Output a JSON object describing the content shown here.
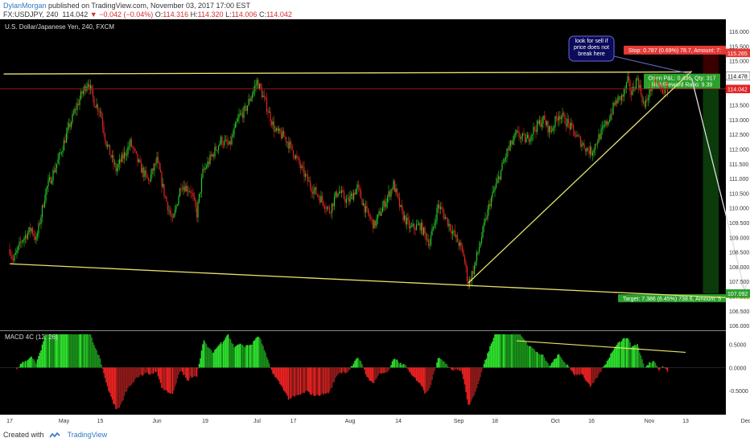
{
  "header": {
    "author": "DylanMorgan",
    "published": "published on TradingView.com, November 03, 2017 17:00 EST",
    "symbol": "FX:USDJPY, 240",
    "last": "114.042",
    "change": "▼ −0.042 (−0.04%)",
    "o_label": "O:",
    "o": "114.316",
    "h_label": "H:",
    "h": "114.320",
    "l_label": "L:",
    "l": "114.006",
    "c_label": "C:",
    "c": "114.042"
  },
  "footer": {
    "created": "Created with",
    "brand": "TradingView"
  },
  "colors": {
    "up": "#27c927",
    "down": "#e02424",
    "trend": "#e8e26a",
    "bg": "#000000",
    "axis_bg": "#ffffff",
    "target": "#2ca02c",
    "stop": "#e53935"
  },
  "chart_data": [
    {
      "type": "candlestick",
      "title": "U.S. Dollar/Japanese Yen, 240, FXCM",
      "ylim": [
        105.95,
        116.3
      ],
      "y_ticks": [
        "116.000",
        "115.500",
        "115.000",
        "114.500",
        "114.000",
        "113.500",
        "113.000",
        "112.500",
        "112.000",
        "111.500",
        "111.000",
        "110.500",
        "110.000",
        "109.500",
        "109.000",
        "108.500",
        "108.000",
        "107.500",
        "107.000",
        "106.500",
        "106.000"
      ],
      "x_tick_labels": [
        "17",
        "May",
        "15",
        "Jun",
        "19",
        "Jul",
        "17",
        "Aug",
        "14",
        "Sep",
        "18",
        "Oct",
        "16",
        "Nov",
        "13",
        "Dec"
      ],
      "x_tick_index": [
        0,
        45,
        75,
        122,
        162,
        205,
        235,
        282,
        322,
        372,
        402,
        452,
        482,
        530,
        560,
        610
      ],
      "total_bars": 640,
      "price_path": [
        [
          0,
          108.6
        ],
        [
          3,
          108.2
        ],
        [
          10,
          108.9
        ],
        [
          18,
          109.3
        ],
        [
          22,
          108.9
        ],
        [
          30,
          110.6
        ],
        [
          40,
          111.6
        ],
        [
          48,
          112.6
        ],
        [
          55,
          113.4
        ],
        [
          60,
          113.9
        ],
        [
          65,
          114.3
        ],
        [
          70,
          113.6
        ],
        [
          75,
          113.3
        ],
        [
          80,
          112.2
        ],
        [
          88,
          111.3
        ],
        [
          95,
          111.8
        ],
        [
          100,
          112.2
        ],
        [
          108,
          111.4
        ],
        [
          115,
          110.9
        ],
        [
          122,
          111.6
        ],
        [
          128,
          110.5
        ],
        [
          135,
          109.5
        ],
        [
          142,
          110.8
        ],
        [
          150,
          110.6
        ],
        [
          155,
          109.8
        ],
        [
          160,
          111.2
        ],
        [
          168,
          111.8
        ],
        [
          175,
          112.3
        ],
        [
          182,
          112.1
        ],
        [
          190,
          113.1
        ],
        [
          195,
          113.3
        ],
        [
          200,
          113.8
        ],
        [
          205,
          114.3
        ],
        [
          208,
          114.0
        ],
        [
          215,
          113.2
        ],
        [
          220,
          112.6
        ],
        [
          228,
          112.4
        ],
        [
          235,
          111.9
        ],
        [
          242,
          111.3
        ],
        [
          250,
          110.7
        ],
        [
          258,
          110.3
        ],
        [
          265,
          109.9
        ],
        [
          272,
          110.6
        ],
        [
          280,
          110.2
        ],
        [
          288,
          110.7
        ],
        [
          295,
          109.9
        ],
        [
          302,
          109.4
        ],
        [
          310,
          110.1
        ],
        [
          318,
          110.8
        ],
        [
          325,
          109.8
        ],
        [
          332,
          109.3
        ],
        [
          340,
          109.4
        ],
        [
          348,
          108.8
        ],
        [
          355,
          110.1
        ],
        [
          362,
          109.6
        ],
        [
          368,
          109.1
        ],
        [
          372,
          108.8
        ],
        [
          376,
          108.4
        ],
        [
          380,
          107.4
        ],
        [
          385,
          108.0
        ],
        [
          392,
          109.2
        ],
        [
          398,
          110.2
        ],
        [
          405,
          111.0
        ],
        [
          412,
          111.9
        ],
        [
          420,
          112.5
        ],
        [
          428,
          112.3
        ],
        [
          435,
          112.7
        ],
        [
          442,
          113.0
        ],
        [
          448,
          112.6
        ],
        [
          455,
          113.2
        ],
        [
          462,
          112.9
        ],
        [
          470,
          112.4
        ],
        [
          478,
          112.0
        ],
        [
          482,
          111.9
        ],
        [
          488,
          112.4
        ],
        [
          495,
          112.9
        ],
        [
          502,
          113.6
        ],
        [
          508,
          113.8
        ],
        [
          512,
          114.3
        ],
        [
          515,
          113.9
        ],
        [
          520,
          114.4
        ],
        [
          526,
          113.4
        ],
        [
          530,
          114.0
        ],
        [
          535,
          114.3
        ],
        [
          540,
          114.0
        ],
        [
          545,
          114.04
        ]
      ],
      "lines": [
        {
          "name": "upper-resistance",
          "from": [
            -5,
            114.55
          ],
          "to": [
            565,
            114.62
          ]
        },
        {
          "name": "rising-support",
          "from": [
            380,
            107.45
          ],
          "to": [
            565,
            114.65
          ]
        },
        {
          "name": "lower-channel",
          "from": [
            0,
            108.1
          ],
          "to": [
            620,
            106.9
          ]
        },
        {
          "name": "projection-arrow",
          "from": [
            565,
            114.4
          ],
          "to": [
            609,
            107.2
          ]
        }
      ],
      "price_line": 114.042,
      "position": {
        "entry": 114.478,
        "stop": 115.265,
        "target": 107.092,
        "start_bar": 565,
        "end_bar": 630
      },
      "labels": {
        "note": "look for sell if price does not break here",
        "pnl_line1": "Open P&L: 0.436, Qty: 317",
        "pnl_line2": "Risk/Reward Ratio: 9.39",
        "stop": "Stop: 0.787 (0.69%) 78.7, Amount: 7:",
        "target": "Target: 7.386 (6.45%) 738.6, Amount: 5",
        "tag_stop": "115.265",
        "tag_entry": "114.478",
        "tag_last": "114.042",
        "tag_target": "107.092"
      }
    },
    {
      "type": "histogram",
      "title": "MACD 4C (12, 26)",
      "ylim": [
        -0.95,
        0.72
      ],
      "y_ticks": [
        "0.5000",
        "0.0000",
        "-0.5000"
      ],
      "divergence_line": {
        "from": [
          420,
          0.58
        ],
        "to": [
          560,
          0.33
        ]
      }
    }
  ]
}
